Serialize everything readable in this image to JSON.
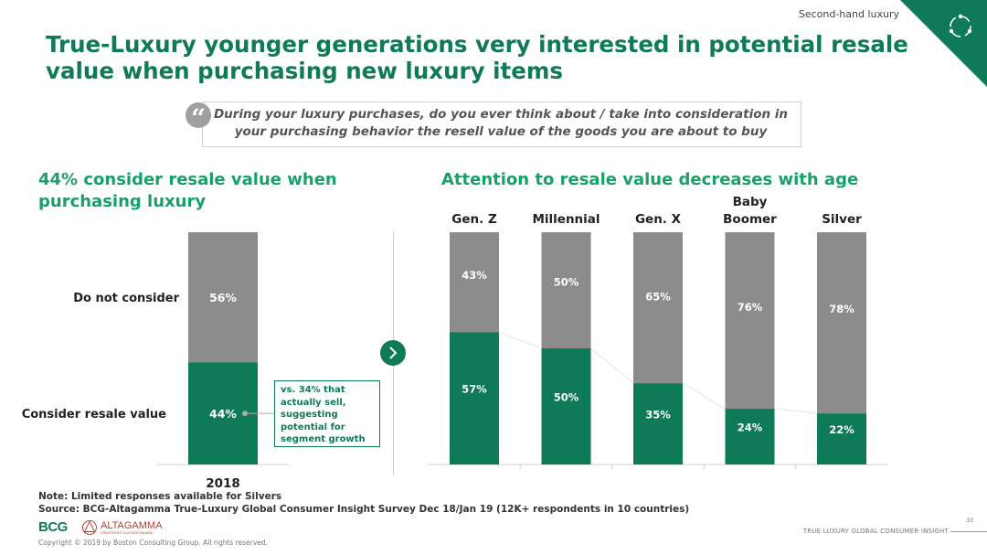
{
  "header": {
    "section_label": "Second-hand luxury",
    "title": "True-Luxury younger generations very interested in potential resale value when purchasing new luxury items"
  },
  "quote": {
    "mark": "“",
    "text": "During your luxury purchases, do you ever think about / take into consideration in your purchasing behavior the resell value of the goods you are about to buy"
  },
  "left_panel": {
    "subtitle": "44% consider resale value when purchasing luxury",
    "callout": "vs. 34% that actually sell, suggesting potential for segment growth"
  },
  "right_panel": {
    "subtitle": "Attention to resale value decreases with age"
  },
  "chart_data": [
    {
      "type": "bar",
      "stacked": true,
      "categories": [
        "2018"
      ],
      "series": [
        {
          "name": "Consider resale value",
          "values": [
            44
          ],
          "labels": [
            "44%"
          ]
        },
        {
          "name": "Do not consider",
          "values": [
            56
          ],
          "labels": [
            "56%"
          ]
        }
      ],
      "ylim": [
        0,
        100
      ]
    },
    {
      "type": "bar",
      "stacked": true,
      "categories": [
        "Gen. Z",
        "Millennial",
        "Gen. X",
        "Baby Boomer",
        "Silver"
      ],
      "series": [
        {
          "name": "Consider resale value",
          "values": [
            57,
            50,
            35,
            24,
            22
          ],
          "labels": [
            "57%",
            "50%",
            "35%",
            "24%",
            "22%"
          ]
        },
        {
          "name": "Do not consider",
          "values": [
            43,
            50,
            65,
            76,
            78
          ],
          "labels": [
            "43%",
            "50%",
            "65%",
            "76%",
            "78%"
          ]
        }
      ],
      "ylim": [
        0,
        100
      ]
    }
  ],
  "colors": {
    "consider": "#0e7a57",
    "not_consider": "#8c8c8c",
    "accent": "#18a06a",
    "trend_line": "#e3e3e3"
  },
  "icons": {
    "corner": "circular-arrows-icon",
    "nav": "chevron-right-icon"
  },
  "footer": {
    "note": "Note: Limited responses available for Silvers",
    "source": "Source: BCG-Altagamma True-Luxury Global Consumer Insight Survey Dec 18/Jan 19 (12K+ respondents in 10 countries)",
    "logo_bcg": "BCG",
    "logo_altagamma": "ALTAGAMMA",
    "logo_altagamma_sub": "CREATIVITÀ E CULTURA ITALIANA",
    "copyright": "Copyright © 2019 by Boston Consulting Group. All rights reserved.",
    "page_number": "33",
    "report_name": "TRUE LUXURY GLOBAL CONSUMER INSIGHT"
  }
}
